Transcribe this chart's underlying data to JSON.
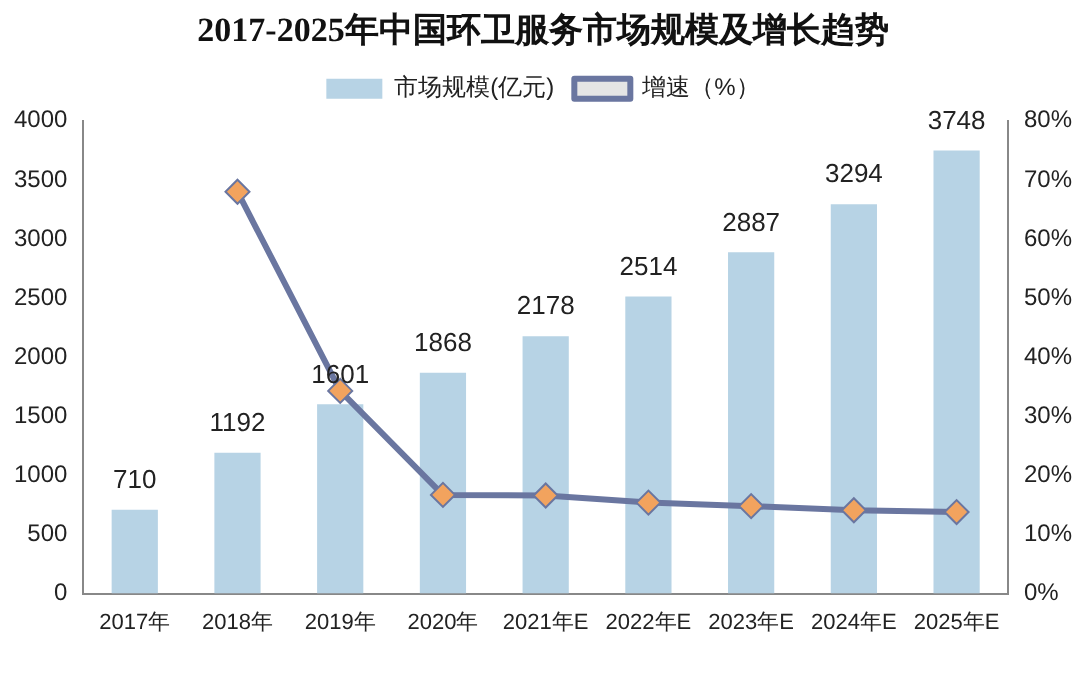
{
  "chart_data": {
    "type": "bar",
    "title": "2017-2025年中国环卫服务市场规模及增长趋势",
    "categories": [
      "2017年",
      "2018年",
      "2019年",
      "2020年",
      "2021年E",
      "2022年E",
      "2023年E",
      "2024年E",
      "2025年E"
    ],
    "series": [
      {
        "name": "市场规模(亿元)",
        "color": "#b7d3e5",
        "values": [
          710,
          1192,
          1601,
          1868,
          2178,
          2514,
          2887,
          3294,
          3748
        ],
        "value_labels": [
          "710",
          "1192",
          "1601",
          "1868",
          "2178",
          "2514",
          "2887",
          "3294",
          "3748"
        ]
      },
      {
        "name": "增速（%）",
        "type": "line",
        "axis": "y2",
        "color": "#6a76a0",
        "marker": "diamond",
        "values": [
          null,
          68,
          34.3,
          16.7,
          16.6,
          15.4,
          14.8,
          14.1,
          13.8
        ]
      }
    ],
    "ylim": [
      0,
      4000
    ],
    "yticks": [
      0,
      500,
      1000,
      1500,
      2000,
      2500,
      3000,
      3500,
      4000
    ],
    "y2lim": [
      0,
      80
    ],
    "y2ticks": [
      {
        "value": 0,
        "label": "0%"
      },
      {
        "value": 10,
        "label": "10%"
      },
      {
        "value": 20,
        "label": "20%"
      },
      {
        "value": 30,
        "label": "30%"
      },
      {
        "value": 40,
        "label": "40%"
      },
      {
        "value": 50,
        "label": "50%"
      },
      {
        "value": 60,
        "label": "60%"
      },
      {
        "value": 70,
        "label": "70%"
      },
      {
        "value": 80,
        "label": "80%"
      }
    ],
    "grid": false,
    "legend": "top"
  }
}
